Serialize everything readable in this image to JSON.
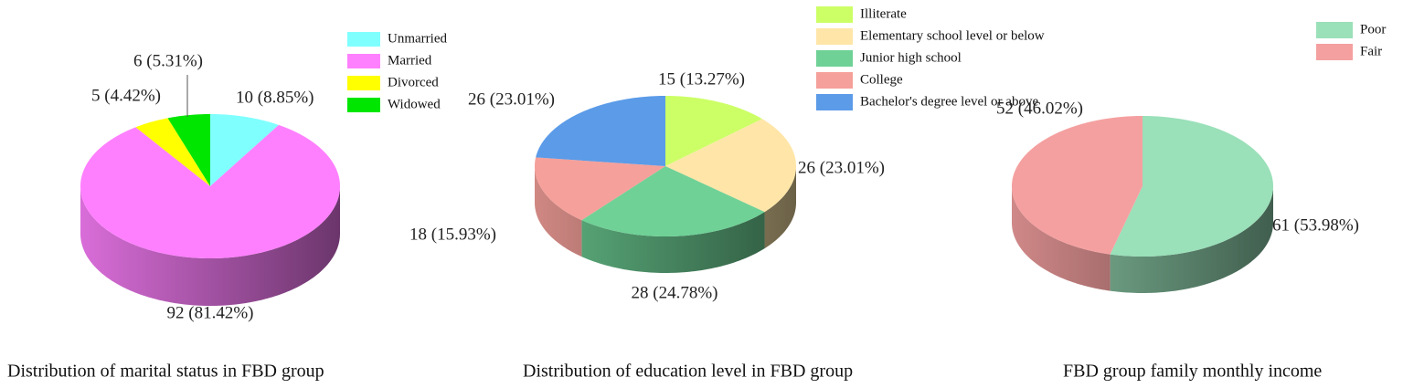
{
  "chart_data": [
    {
      "type": "pie",
      "title": "Distribution of marital status in FBD group",
      "categories": [
        "Unmarried",
        "Married",
        "Divorced",
        "Widowed"
      ],
      "values": [
        10,
        92,
        5,
        6
      ],
      "value_labels": [
        "10 (8.85%)",
        "92 (81.42%)",
        "5 (4.42%)",
        "6 (5.31%)"
      ],
      "colors": [
        "#80ffff",
        "#ff80ff",
        "#ffff00",
        "#00e600"
      ]
    },
    {
      "type": "pie",
      "title": "Distribution of education level in FBD group",
      "categories": [
        "Illiterate",
        "Elementary school level or below",
        "Junior high school",
        "College",
        "Bachelor's degree level or above"
      ],
      "values": [
        15,
        26,
        28,
        18,
        26
      ],
      "value_labels": [
        "15 (13.27%)",
        "26 (23.01%)",
        "28 (24.78%)",
        "18 (15.93%)",
        "26 (23.01%)"
      ],
      "colors": [
        "#ccff66",
        "#ffe6a8",
        "#6fd196",
        "#f5a09a",
        "#5b9be8"
      ]
    },
    {
      "type": "pie",
      "title": "FBD group family monthly income",
      "categories": [
        "Poor",
        "Fair"
      ],
      "values": [
        61,
        52
      ],
      "value_labels": [
        "61 (53.98%)",
        "52 (46.02%)"
      ],
      "colors": [
        "#9ae0b9",
        "#f5a0a0"
      ]
    }
  ]
}
